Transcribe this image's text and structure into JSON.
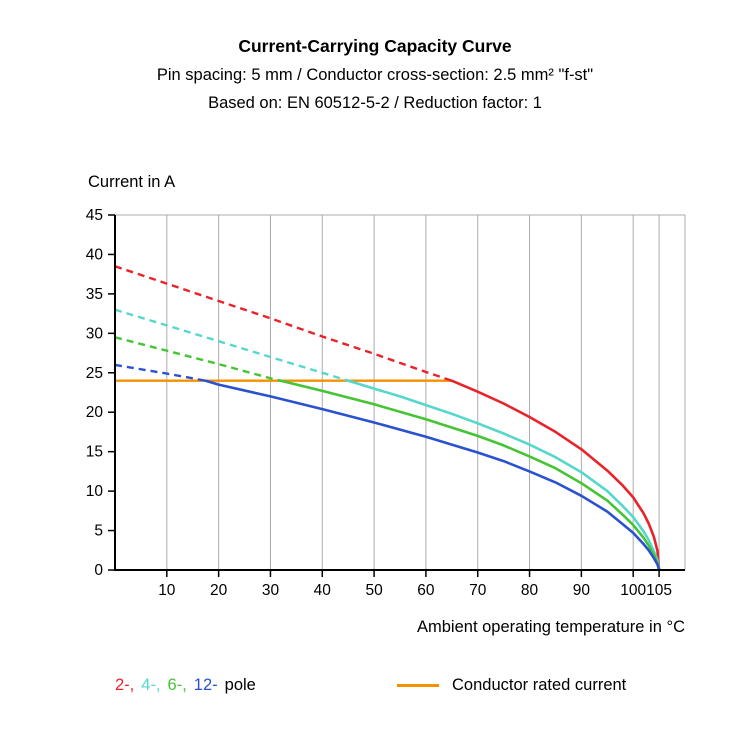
{
  "header": {
    "title": "Current-Carrying Capacity Curve",
    "subtitle_line1": "Pin spacing: 5 mm / Conductor cross-section: 2.5 mm² \"f-st\"",
    "subtitle_line2": "Based on: EN 60512-5-2 / Reduction factor: 1"
  },
  "chart_data": {
    "type": "line",
    "title": "Current-Carrying Capacity Curve",
    "xlabel": "Ambient operating temperature in °C",
    "ylabel": "Current in A",
    "xlim": [
      0,
      110
    ],
    "ylim": [
      0,
      45
    ],
    "xticks": [
      10,
      20,
      30,
      40,
      50,
      60,
      70,
      80,
      90,
      100,
      105
    ],
    "yticks": [
      0,
      5,
      10,
      15,
      20,
      25,
      30,
      35,
      40,
      45
    ],
    "grid": "vertical-only",
    "legend_position": "bottom",
    "style": {
      "grid_color": "#ababab",
      "axis_color": "#000000"
    },
    "rated_current": {
      "label": "Conductor rated current",
      "value": 24,
      "x_start": 0,
      "x_end": 65,
      "color": "#f59100"
    },
    "series": [
      {
        "name": "2-pole",
        "color": "#e8232a",
        "dash_until_x": 65,
        "points": [
          [
            0,
            38.5
          ],
          [
            10,
            36.3
          ],
          [
            20,
            34.1
          ],
          [
            30,
            31.9
          ],
          [
            40,
            29.6
          ],
          [
            50,
            27.4
          ],
          [
            60,
            25.1
          ],
          [
            65,
            24
          ],
          [
            70,
            22.6
          ],
          [
            75,
            21.1
          ],
          [
            80,
            19.4
          ],
          [
            85,
            17.5
          ],
          [
            90,
            15.3
          ],
          [
            95,
            12.6
          ],
          [
            98,
            10.7
          ],
          [
            100,
            9.2
          ],
          [
            102,
            7.2
          ],
          [
            103,
            5.9
          ],
          [
            104,
            4.2
          ],
          [
            104.7,
            2.4
          ],
          [
            105,
            0
          ]
        ]
      },
      {
        "name": "4-pole",
        "color": "#55d7cb",
        "dash_until_x": 45,
        "points": [
          [
            0,
            33
          ],
          [
            10,
            31
          ],
          [
            20,
            29
          ],
          [
            30,
            27
          ],
          [
            40,
            25
          ],
          [
            45,
            24
          ],
          [
            50,
            23
          ],
          [
            55,
            22
          ],
          [
            60,
            20.9
          ],
          [
            65,
            19.8
          ],
          [
            70,
            18.6
          ],
          [
            75,
            17.3
          ],
          [
            80,
            15.9
          ],
          [
            85,
            14.3
          ],
          [
            90,
            12.4
          ],
          [
            95,
            10
          ],
          [
            98,
            8.1
          ],
          [
            100,
            6.7
          ],
          [
            102,
            4.9
          ],
          [
            103,
            3.8
          ],
          [
            104,
            2.4
          ],
          [
            104.7,
            1.2
          ],
          [
            105,
            0
          ]
        ]
      },
      {
        "name": "6-pole",
        "color": "#45c436",
        "dash_until_x": 32,
        "points": [
          [
            0,
            29.5
          ],
          [
            10,
            27.8
          ],
          [
            20,
            26.1
          ],
          [
            30,
            24.3
          ],
          [
            32,
            24
          ],
          [
            40,
            22.7
          ],
          [
            50,
            21
          ],
          [
            60,
            19.1
          ],
          [
            70,
            17
          ],
          [
            75,
            15.8
          ],
          [
            80,
            14.4
          ],
          [
            85,
            12.9
          ],
          [
            90,
            11
          ],
          [
            95,
            8.8
          ],
          [
            98,
            7
          ],
          [
            100,
            5.7
          ],
          [
            102,
            4.1
          ],
          [
            103,
            3.1
          ],
          [
            104,
            1.9
          ],
          [
            104.7,
            0.9
          ],
          [
            105,
            0
          ]
        ]
      },
      {
        "name": "12-pole",
        "color": "#2a52cf",
        "dash_until_x": 17.5,
        "points": [
          [
            0,
            26
          ],
          [
            10,
            24.9
          ],
          [
            17.5,
            24
          ],
          [
            20,
            23.5
          ],
          [
            30,
            22
          ],
          [
            40,
            20.4
          ],
          [
            50,
            18.7
          ],
          [
            60,
            16.9
          ],
          [
            70,
            14.9
          ],
          [
            75,
            13.8
          ],
          [
            80,
            12.5
          ],
          [
            85,
            11.1
          ],
          [
            90,
            9.4
          ],
          [
            95,
            7.4
          ],
          [
            98,
            5.8
          ],
          [
            100,
            4.7
          ],
          [
            102,
            3.3
          ],
          [
            103,
            2.5
          ],
          [
            104,
            1.5
          ],
          [
            104.7,
            0.7
          ],
          [
            105,
            0
          ]
        ]
      }
    ]
  },
  "legend": {
    "pole_items": [
      {
        "label": "2-,",
        "color": "#e8232a"
      },
      {
        "label": "4-,",
        "color": "#55d7cb"
      },
      {
        "label": "6-,",
        "color": "#45c436"
      },
      {
        "label": "12-",
        "color": "#2a52cf"
      }
    ],
    "pole_suffix": "pole",
    "rated": {
      "label": "Conductor rated current",
      "color": "#f59100"
    }
  }
}
